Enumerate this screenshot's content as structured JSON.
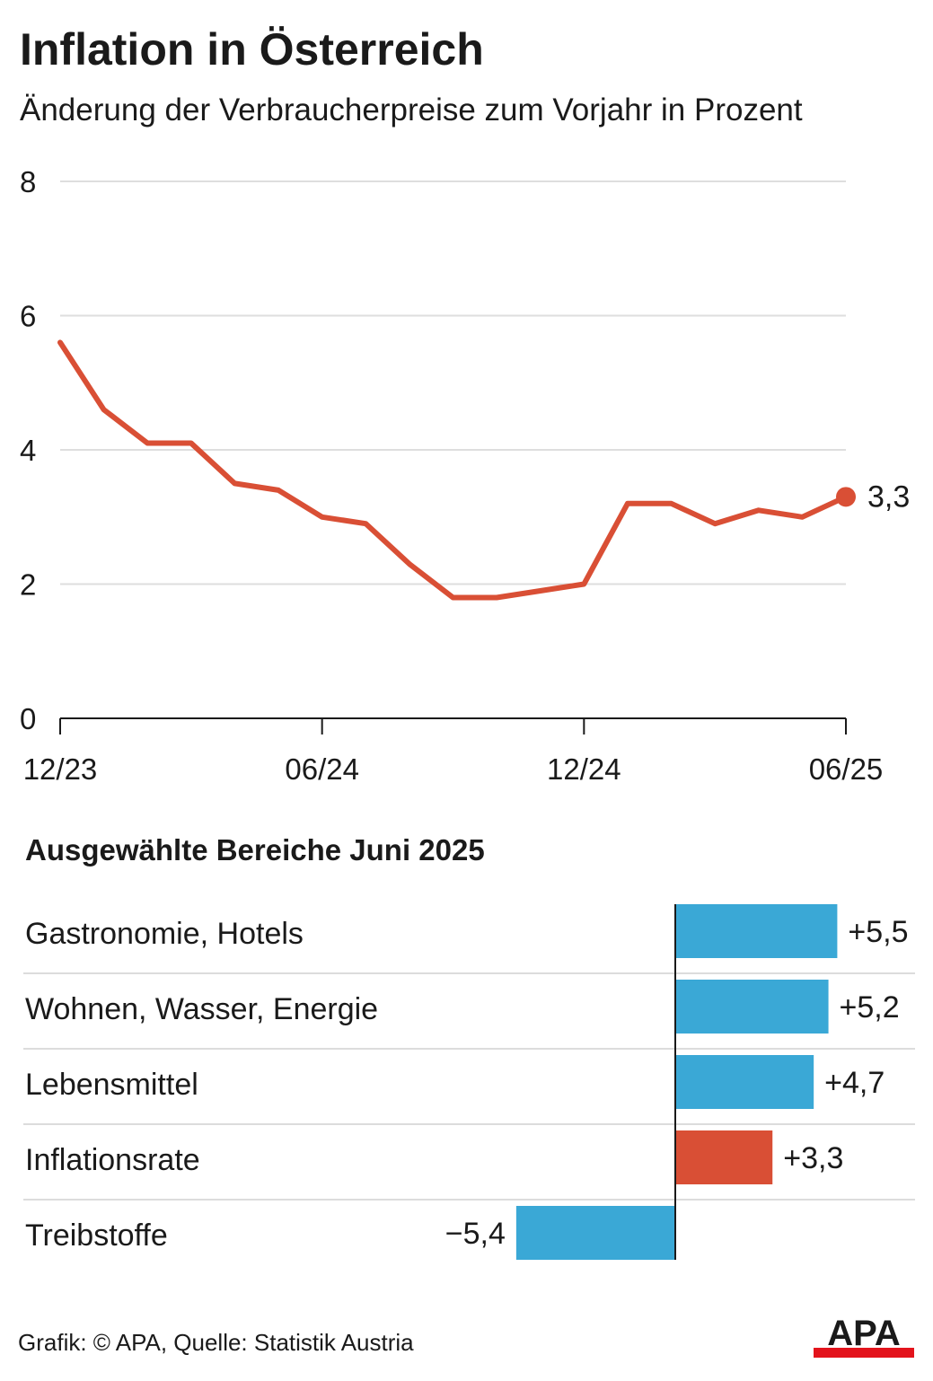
{
  "title": "Inflation in Österreich",
  "subtitle": "Änderung der Verbraucherpreise zum Vorjahr in Prozent",
  "chart_data": [
    {
      "type": "line",
      "x_tick_labels": [
        "12/23",
        "06/24",
        "12/24",
        "06/25"
      ],
      "y_ticks": [
        "0",
        "2",
        "4",
        "6",
        "8"
      ],
      "ylim": [
        0,
        8
      ],
      "grid": true,
      "x": [
        "12/23",
        "01/24",
        "02/24",
        "03/24",
        "04/24",
        "05/24",
        "06/24",
        "07/24",
        "08/24",
        "09/24",
        "10/24",
        "11/24",
        "12/24",
        "01/25",
        "02/25",
        "03/25",
        "04/25",
        "05/25",
        "06/25"
      ],
      "values": [
        5.6,
        4.6,
        4.1,
        4.1,
        3.5,
        3.4,
        3.0,
        2.9,
        2.3,
        1.8,
        1.8,
        1.9,
        2.0,
        3.2,
        3.2,
        2.9,
        3.1,
        3.0,
        3.3
      ],
      "end_label": "3,3",
      "color": "#d94f35"
    },
    {
      "type": "bar",
      "title": "Ausgewählte Bereiche Juni 2025",
      "categories": [
        "Gastronomie, Hotels",
        "Wohnen, Wasser, Energie",
        "Lebensmittel",
        "Inflationsrate",
        "Treibstoffe"
      ],
      "values": [
        5.5,
        5.2,
        4.7,
        3.3,
        -5.4
      ],
      "value_labels": [
        "+5,5",
        "+5,2",
        "+4,7",
        "+3,3",
        "−5,4"
      ],
      "colors": [
        "#3aa8d6",
        "#3aa8d6",
        "#3aa8d6",
        "#d94f35",
        "#3aa8d6"
      ]
    }
  ],
  "footer": "Grafik: © APA, Quelle: Statistik Austria",
  "logo": {
    "text": "APA",
    "color": "#e3131c"
  }
}
